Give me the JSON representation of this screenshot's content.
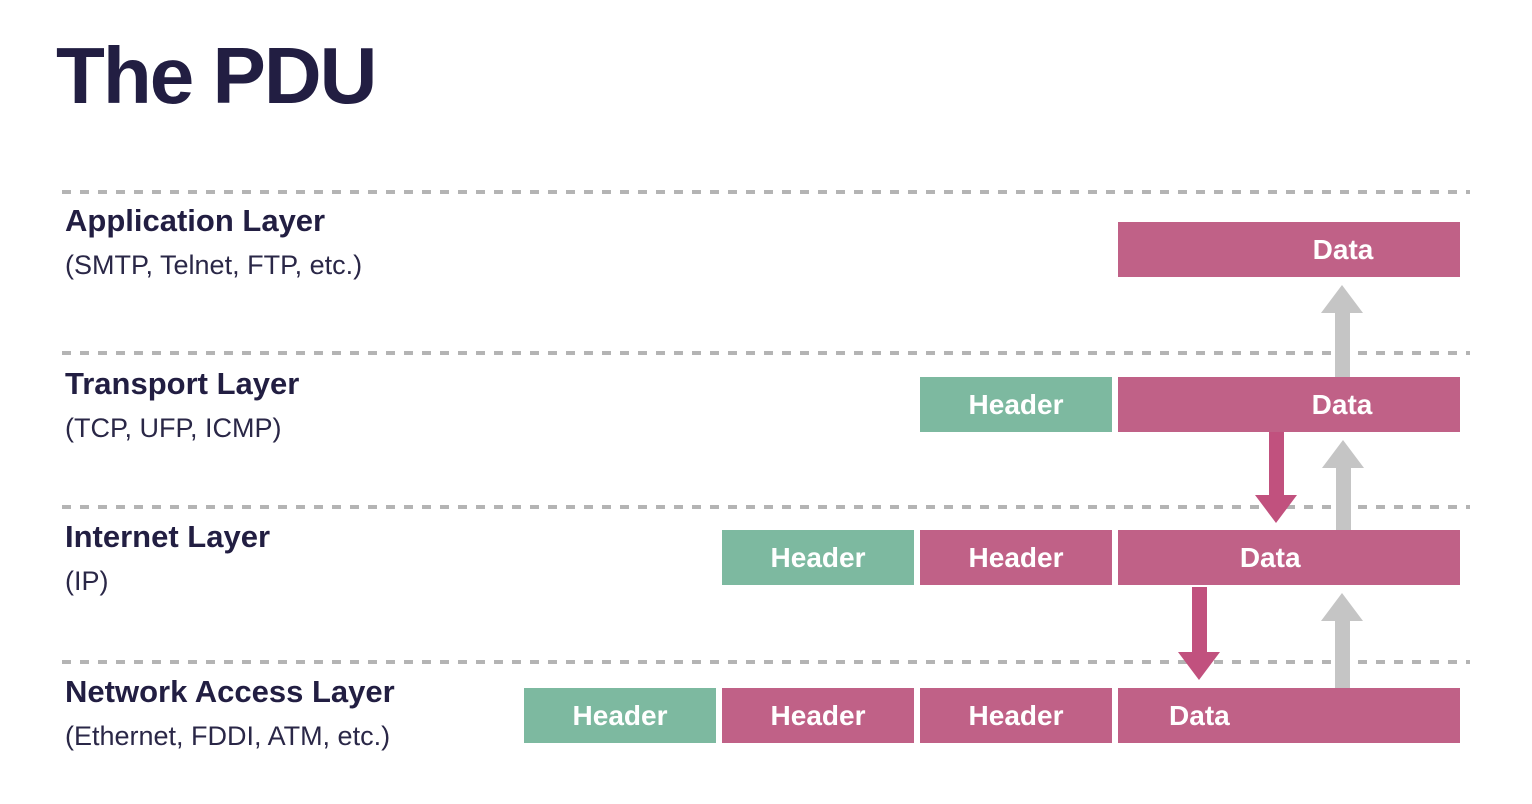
{
  "title": "The PDU",
  "layers": [
    {
      "name": "Application Layer",
      "subtitle": "(SMTP, Telnet, FTP, etc.)",
      "pdu": [
        {
          "label": "Data",
          "kind": "data"
        }
      ]
    },
    {
      "name": "Transport Layer",
      "subtitle": "(TCP, UFP, ICMP)",
      "pdu": [
        {
          "label": "Header",
          "kind": "new-header"
        },
        {
          "label": "Data",
          "kind": "data"
        }
      ]
    },
    {
      "name": "Internet Layer",
      "subtitle": "(IP)",
      "pdu": [
        {
          "label": "Header",
          "kind": "new-header"
        },
        {
          "label": "Header",
          "kind": "prior-header"
        },
        {
          "label": "Data",
          "kind": "data"
        }
      ]
    },
    {
      "name": "Network Access Layer",
      "subtitle": "(Ethernet, FDDI, ATM, etc.)",
      "pdu": [
        {
          "label": "Header",
          "kind": "new-header"
        },
        {
          "label": "Header",
          "kind": "prior-header"
        },
        {
          "label": "Header",
          "kind": "prior-header"
        },
        {
          "label": "Data",
          "kind": "data"
        }
      ]
    }
  ],
  "arrows": [
    {
      "icon": "up-arrow-icon",
      "direction": "up",
      "from": "Transport Layer",
      "to": "Application Layer",
      "color": "#c5c5c5"
    },
    {
      "icon": "down-arrow-icon",
      "direction": "down",
      "from": "Transport Layer",
      "to": "Internet Layer",
      "color": "#c1517e"
    },
    {
      "icon": "up-arrow-icon",
      "direction": "up",
      "from": "Internet Layer",
      "to": "Transport Layer",
      "color": "#c5c5c5"
    },
    {
      "icon": "down-arrow-icon",
      "direction": "down",
      "from": "Internet Layer",
      "to": "Network Access Layer",
      "color": "#c1517e"
    },
    {
      "icon": "up-arrow-icon",
      "direction": "up",
      "from": "Network Access Layer",
      "to": "Internet Layer",
      "color": "#c5c5c5"
    }
  ],
  "colors": {
    "title_text": "#221e42",
    "new_header_green": "#7db9a0",
    "pdu_pink": "#c06187",
    "arrow_pink": "#c1517e",
    "arrow_gray": "#c5c5c5",
    "dashed_line": "#b4b4b4",
    "box_text": "#ffffff"
  }
}
